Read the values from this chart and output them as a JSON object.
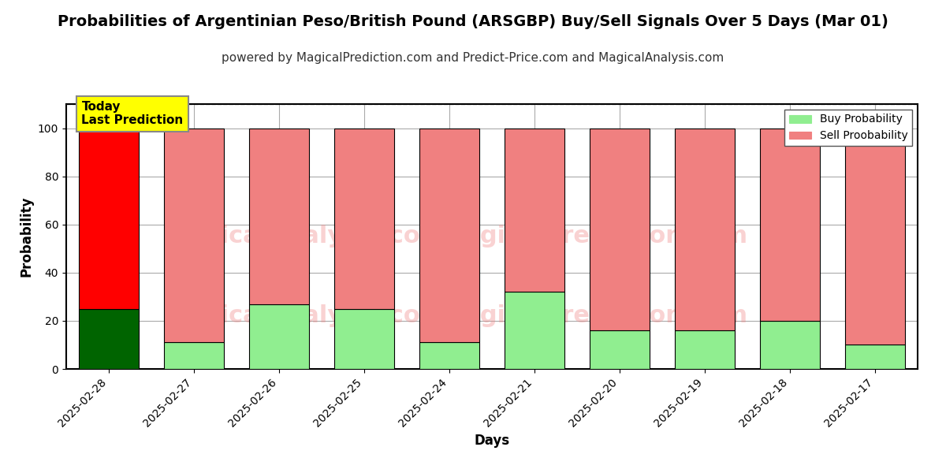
{
  "title": "Probabilities of Argentinian Peso/British Pound (ARSGBP) Buy/Sell Signals Over 5 Days (Mar 01)",
  "subtitle": "powered by MagicalPrediction.com and Predict-Price.com and MagicalAnalysis.com",
  "xlabel": "Days",
  "ylabel": "Probability",
  "categories": [
    "2025-02-28",
    "2025-02-27",
    "2025-02-26",
    "2025-02-25",
    "2025-02-24",
    "2025-02-21",
    "2025-02-20",
    "2025-02-19",
    "2025-02-18",
    "2025-02-17"
  ],
  "buy_values": [
    25,
    11,
    27,
    25,
    11,
    32,
    16,
    16,
    20,
    10
  ],
  "sell_values": [
    75,
    89,
    73,
    75,
    89,
    68,
    84,
    84,
    80,
    90
  ],
  "today_bar_index": 0,
  "today_buy_color": "#006400",
  "today_sell_color": "#FF0000",
  "other_buy_color": "#90EE90",
  "other_sell_color": "#F08080",
  "bar_edge_color": "#000000",
  "ylim": [
    0,
    110
  ],
  "yticks": [
    0,
    20,
    40,
    60,
    80,
    100
  ],
  "dashed_line_y": 110,
  "legend_buy_label": "Buy Probability",
  "legend_sell_label": "Sell Proobability",
  "today_label_line1": "Today",
  "today_label_line2": "Last Prediction",
  "today_box_color": "#FFFF00",
  "watermark_color": "#F08080",
  "watermark_alpha": 0.35,
  "title_fontsize": 14,
  "subtitle_fontsize": 11,
  "axis_label_fontsize": 12,
  "tick_fontsize": 10,
  "background_color": "#FFFFFF",
  "grid_color": "#AAAAAA",
  "bar_width": 0.7
}
